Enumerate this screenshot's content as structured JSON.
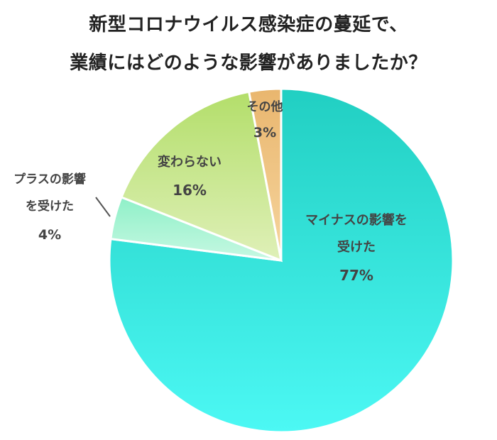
{
  "chart_data": {
    "type": "pie",
    "title": "新型コロナウイルス感染症の蔓延で、",
    "subtitle": "業績にはどのような影響がありましたか？",
    "slices": [
      {
        "label_lines": [
          "マイナスの影響を",
          "受けた"
        ],
        "pct": "77%",
        "value": 77,
        "colors": [
          "#21cfc2",
          "#4cf8f4"
        ]
      },
      {
        "label_lines": [
          "プラスの影響",
          "を受けた"
        ],
        "pct": "4%",
        "value": 4,
        "colors": [
          "#8ff0c8",
          "#c6f8e2"
        ]
      },
      {
        "label_lines": [
          "変わらない"
        ],
        "pct": "16%",
        "value": 16,
        "colors": [
          "#b3de6a",
          "#dff0b8"
        ]
      },
      {
        "label_lines": [
          "その他"
        ],
        "pct": "3%",
        "value": 3,
        "colors": [
          "#e9b66e",
          "#f6d59e"
        ]
      }
    ]
  }
}
